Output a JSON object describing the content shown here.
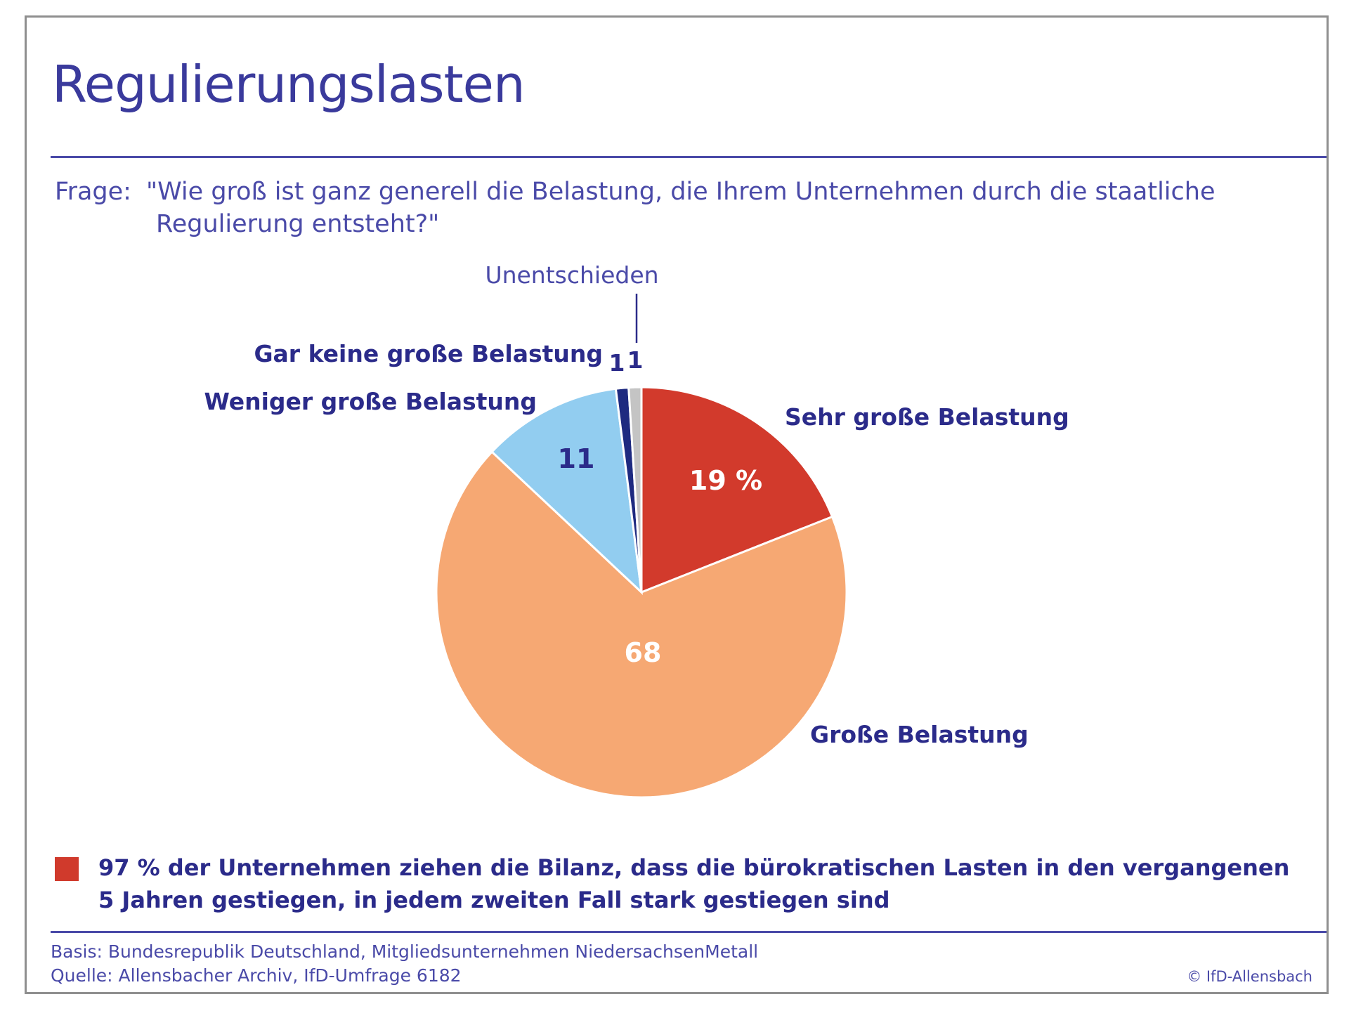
{
  "title": "Regulierungslasten",
  "question": {
    "prefix": "Frage:",
    "line1": "\"Wie groß ist ganz generell die Belastung, die Ihrem Unternehmen durch die staatliche",
    "line2": "Regulierung entsteht?\""
  },
  "chart_data": {
    "type": "pie",
    "unit": "%",
    "slices": [
      {
        "label": "Sehr große Belastung",
        "value": 19,
        "value_label": "19 %",
        "color": "#d23a2c"
      },
      {
        "label": "Große Belastung",
        "value": 68,
        "value_label": "68",
        "color": "#f6a873"
      },
      {
        "label": "Weniger große Belastung",
        "value": 11,
        "value_label": "11",
        "color": "#92cdf0"
      },
      {
        "label": "Gar keine große Belastung",
        "value": 1,
        "value_label": "1",
        "color": "#1e2a80"
      },
      {
        "label": "Unentschieden",
        "value": 1,
        "value_label": "1",
        "color": "#c4c4c4"
      }
    ]
  },
  "note": {
    "line1": "97 % der Unternehmen ziehen die Bilanz, dass die bürokratischen Lasten in den vergangenen",
    "line2": "5 Jahren gestiegen, in jedem zweiten Fall stark gestiegen sind",
    "marker_color": "#d03a2c"
  },
  "footer": {
    "basis": "Basis: Bundesrepublik Deutschland, Mitgliedsunternehmen NiedersachsenMetall",
    "source": "Quelle: Allensbacher Archiv, IfD-Umfrage 6182",
    "copyright": "© IfD-Allensbach"
  }
}
